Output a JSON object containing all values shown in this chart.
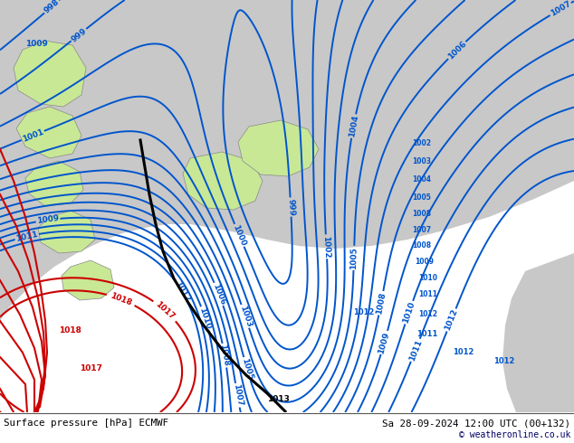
{
  "title_left": "Surface pressure [hPa] ECMWF",
  "title_right": "Sa 28-09-2024 12:00 UTC (00+132)",
  "copyright": "© weatheronline.co.uk",
  "land_color": "#c8e896",
  "sea_color": "#c8c8c8",
  "island_edge": "#888888",
  "blue": "#0055cc",
  "red": "#cc0000",
  "black": "#000000",
  "bottom_bg": "#e8e8e8",
  "figsize": [
    6.34,
    4.9
  ],
  "dpi": 100
}
